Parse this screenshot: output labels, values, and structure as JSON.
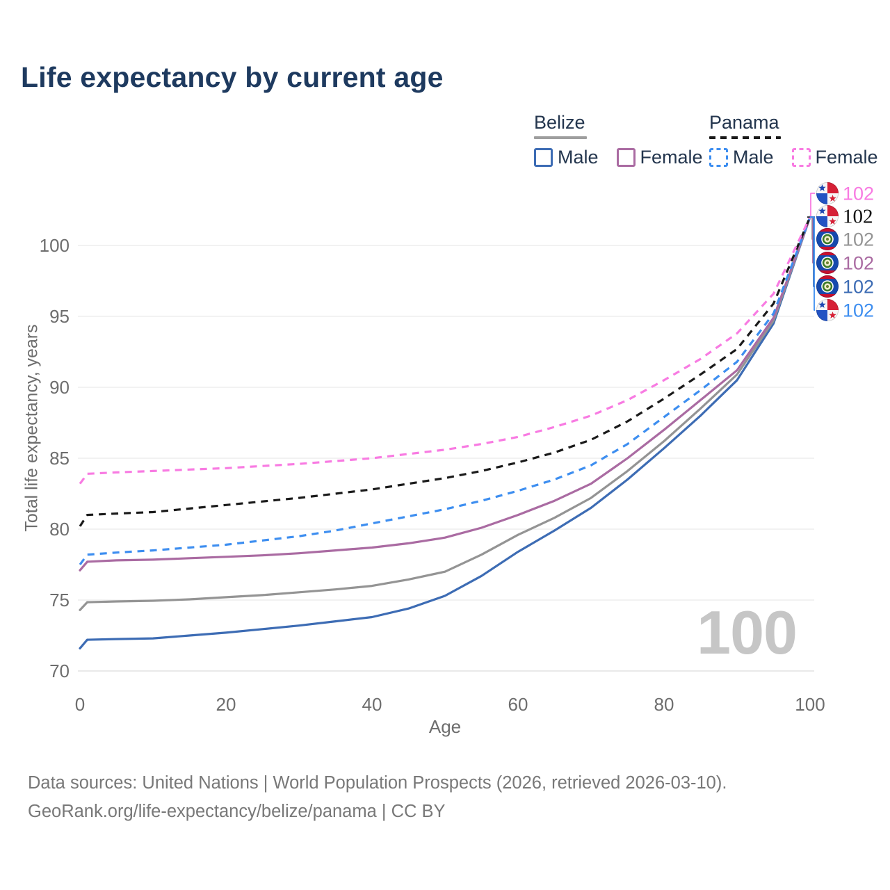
{
  "title": "Life expectancy by current age",
  "legend": {
    "groups": [
      {
        "label": "Belize",
        "line_style": "solid",
        "line_color": "#9e9e9e",
        "items": [
          {
            "label": "Male",
            "color": "#3d6cb4",
            "dashed": false
          },
          {
            "label": "Female",
            "color": "#aa6ba2",
            "dashed": false
          }
        ]
      },
      {
        "label": "Panama",
        "line_style": "dashed",
        "line_color": "#1a1a1a",
        "items": [
          {
            "label": "Male",
            "color": "#3d8ef0",
            "dashed": true
          },
          {
            "label": "Female",
            "color": "#f87be2",
            "dashed": true
          }
        ]
      }
    ]
  },
  "age_indicator": "100",
  "footer": {
    "line1": "Data sources: United Nations | World Population Prospects (2026, retrieved 2026-03-10).",
    "line2": "GeoRank.org/life-expectancy/belize/panama | CC BY"
  },
  "chart_data": {
    "type": "line",
    "title": "Life expectancy by current age",
    "xlabel": "Age",
    "ylabel": "Total life expectancy, years",
    "xlim": [
      0,
      100
    ],
    "ylim": [
      69.4,
      103.3
    ],
    "xticks": [
      0,
      20,
      40,
      60,
      80,
      100
    ],
    "yticks": [
      70,
      75,
      80,
      85,
      90,
      95,
      100
    ],
    "grid": "horizontal",
    "legend_position": "top-right",
    "ages": [
      0,
      1,
      5,
      10,
      15,
      20,
      25,
      30,
      35,
      40,
      45,
      50,
      55,
      60,
      65,
      70,
      75,
      80,
      85,
      90,
      95,
      100
    ],
    "series": [
      {
        "name": "Belize Male",
        "country": "Belize",
        "sex": "Male",
        "color": "#3d6cb4",
        "dashed": false,
        "end_label": "102",
        "values": [
          71.6,
          72.2,
          72.25,
          72.3,
          72.5,
          72.7,
          72.95,
          73.2,
          73.5,
          73.8,
          74.4,
          75.3,
          76.7,
          78.4,
          79.9,
          81.5,
          83.5,
          85.7,
          88.0,
          90.5,
          94.5,
          102
        ]
      },
      {
        "name": "Belize",
        "country": "Belize",
        "sex": "Both",
        "color": "#949494",
        "dashed": false,
        "end_label": "102",
        "values": [
          74.3,
          74.85,
          74.9,
          74.95,
          75.05,
          75.2,
          75.35,
          75.55,
          75.75,
          76.0,
          76.45,
          77.0,
          78.2,
          79.6,
          80.8,
          82.2,
          84.1,
          86.2,
          88.5,
          90.9,
          94.7,
          102
        ]
      },
      {
        "name": "Belize Female",
        "country": "Belize",
        "sex": "Female",
        "color": "#aa6ba2",
        "dashed": false,
        "end_label": "102",
        "values": [
          77.1,
          77.7,
          77.8,
          77.85,
          77.95,
          78.05,
          78.15,
          78.3,
          78.5,
          78.7,
          79.0,
          79.4,
          80.1,
          81.0,
          82.0,
          83.2,
          85.0,
          87.0,
          89.1,
          91.2,
          94.9,
          102
        ]
      },
      {
        "name": "Panama Male",
        "country": "Panama",
        "sex": "Male",
        "color": "#3d8ef0",
        "dashed": true,
        "end_label": "102",
        "values": [
          77.5,
          78.2,
          78.35,
          78.5,
          78.7,
          78.9,
          79.2,
          79.5,
          79.9,
          80.4,
          80.9,
          81.4,
          82.0,
          82.7,
          83.5,
          84.5,
          86.0,
          87.9,
          89.8,
          91.8,
          95.2,
          102
        ]
      },
      {
        "name": "Panama",
        "country": "Panama",
        "sex": "Both",
        "color": "#1a1a1a",
        "dashed": true,
        "end_label": "102",
        "values": [
          80.2,
          81.0,
          81.1,
          81.2,
          81.45,
          81.7,
          81.95,
          82.2,
          82.5,
          82.8,
          83.2,
          83.6,
          84.1,
          84.7,
          85.4,
          86.3,
          87.6,
          89.2,
          90.9,
          92.7,
          95.9,
          102
        ]
      },
      {
        "name": "Panama Female",
        "country": "Panama",
        "sex": "Female",
        "color": "#f87be2",
        "dashed": true,
        "end_label": "102",
        "values": [
          83.2,
          83.9,
          84.0,
          84.1,
          84.2,
          84.3,
          84.45,
          84.6,
          84.8,
          85.0,
          85.3,
          85.6,
          86.0,
          86.5,
          87.2,
          88.0,
          89.1,
          90.5,
          92.0,
          93.8,
          96.6,
          102
        ]
      }
    ],
    "end_label_order": [
      "Panama Female",
      "Panama",
      "Belize",
      "Belize Female",
      "Belize Male",
      "Panama Male"
    ]
  }
}
